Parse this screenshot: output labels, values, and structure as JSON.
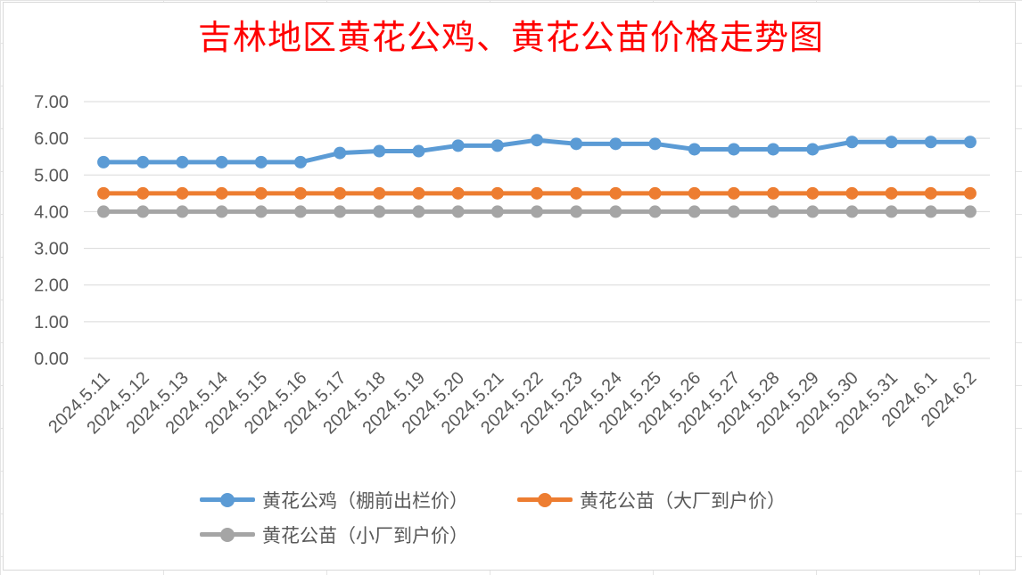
{
  "chart_data": {
    "type": "line",
    "title": "吉林地区黄花公鸡、黄花公苗价格走势图",
    "categories": [
      "2024.5.11",
      "2024.5.12",
      "2024.5.13",
      "2024.5.14",
      "2024.5.15",
      "2024.5.16",
      "2024.5.17",
      "2024.5.18",
      "2024.5.19",
      "2024.5.20",
      "2024.5.21",
      "2024.5.22",
      "2024.5.23",
      "2024.5.24",
      "2024.5.25",
      "2024.5.26",
      "2024.5.27",
      "2024.5.28",
      "2024.5.29",
      "2024.5.30",
      "2024.5.31",
      "2024.6.1",
      "2024.6.2"
    ],
    "series": [
      {
        "name": "黄花公鸡（棚前出栏价）",
        "color": "#5b9bd5",
        "values": [
          5.35,
          5.35,
          5.35,
          5.35,
          5.35,
          5.35,
          5.6,
          5.65,
          5.65,
          5.8,
          5.8,
          5.95,
          5.85,
          5.85,
          5.85,
          5.7,
          5.7,
          5.7,
          5.7,
          5.9,
          5.9,
          5.9,
          5.9
        ]
      },
      {
        "name": "黄花公苗（大厂到户价）",
        "color": "#ed7d31",
        "values": [
          4.5,
          4.5,
          4.5,
          4.5,
          4.5,
          4.5,
          4.5,
          4.5,
          4.5,
          4.5,
          4.5,
          4.5,
          4.5,
          4.5,
          4.5,
          4.5,
          4.5,
          4.5,
          4.5,
          4.5,
          4.5,
          4.5,
          4.5
        ]
      },
      {
        "name": "黄花公苗（小厂到户价）",
        "color": "#a5a5a5",
        "values": [
          4.0,
          4.0,
          4.0,
          4.0,
          4.0,
          4.0,
          4.0,
          4.0,
          4.0,
          4.0,
          4.0,
          4.0,
          4.0,
          4.0,
          4.0,
          4.0,
          4.0,
          4.0,
          4.0,
          4.0,
          4.0,
          4.0,
          4.0
        ]
      }
    ],
    "yticks": [
      "0.00",
      "1.00",
      "2.00",
      "3.00",
      "4.00",
      "5.00",
      "6.00",
      "7.00"
    ],
    "ylim": [
      0,
      7
    ],
    "grid": true,
    "legend_position": "bottom"
  }
}
